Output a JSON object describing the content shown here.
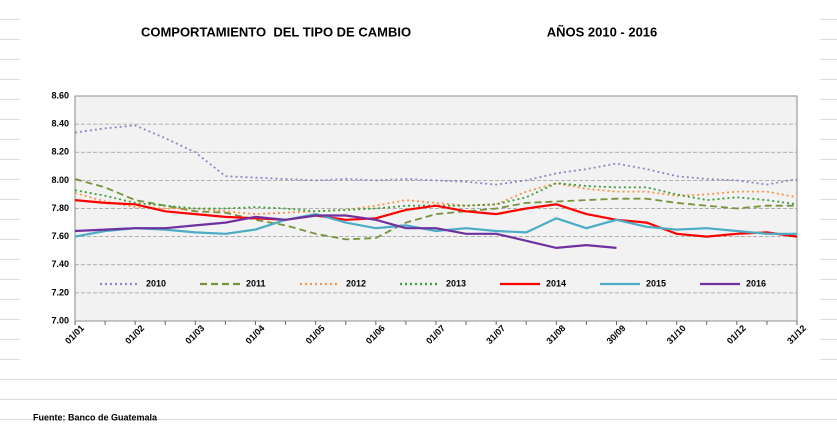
{
  "chart_data": {
    "type": "line",
    "title": "COMPORTAMIENTO  DEL TIPO DE CAMBIO",
    "subtitle": "AÑOS 2010 - 2016",
    "source": "Fuente: Banco de Guatemala",
    "categories": [
      "01/01",
      null,
      "01/02",
      null,
      "01/03",
      null,
      "01/04",
      null,
      "01/05",
      null,
      "01/06",
      null,
      "01/07",
      null,
      "31/07",
      null,
      "31/08",
      null,
      "30/09",
      null,
      "31/10",
      null,
      "01/12",
      null,
      "31/12"
    ],
    "ylim": [
      7,
      8.6
    ],
    "yticks": [
      {
        "value": 7,
        "label": "7.00"
      },
      {
        "value": 7.2,
        "label": "7.20"
      },
      {
        "value": 7.4,
        "label": "7.40"
      },
      {
        "value": 7.6,
        "label": "7.60"
      },
      {
        "value": 7.8,
        "label": "7.80"
      },
      {
        "value": 8,
        "label": "8.00"
      },
      {
        "value": 8.2,
        "label": "8.20"
      },
      {
        "value": 8.4,
        "label": "8.40"
      },
      {
        "value": 8.6,
        "label": "8.60"
      }
    ],
    "grid": true,
    "series": [
      {
        "name": "2010",
        "color": "#8f86c4",
        "dash": "dotted",
        "values": [
          8.34,
          8.37,
          8.39,
          8.3,
          8.2,
          8.03,
          8.02,
          8.01,
          8.0,
          8.01,
          8.0,
          8.01,
          8.0,
          7.99,
          7.97,
          8.0,
          8.05,
          8.08,
          8.12,
          8.08,
          8.03,
          8.01,
          8.0,
          7.97,
          8.01
        ]
      },
      {
        "name": "2011",
        "color": "#77933c",
        "dash": "dashed",
        "values": [
          8.01,
          7.95,
          7.86,
          7.82,
          7.78,
          7.77,
          7.72,
          7.68,
          7.62,
          7.58,
          7.59,
          7.7,
          7.76,
          7.78,
          7.8,
          7.84,
          7.85,
          7.86,
          7.87,
          7.87,
          7.84,
          7.82,
          7.8,
          7.82,
          7.82
        ]
      },
      {
        "name": "2012",
        "color": "#f79646",
        "dash": "dotted",
        "values": [
          7.91,
          7.85,
          7.81,
          7.8,
          7.8,
          7.78,
          7.76,
          7.77,
          7.78,
          7.79,
          7.82,
          7.86,
          7.84,
          7.82,
          7.83,
          7.92,
          7.98,
          7.94,
          7.92,
          7.92,
          7.89,
          7.9,
          7.92,
          7.92,
          7.88
        ]
      },
      {
        "name": "2013",
        "color": "#3a9e3a",
        "dash": "dotted",
        "values": [
          7.93,
          7.89,
          7.84,
          7.82,
          7.8,
          7.8,
          7.81,
          7.8,
          7.78,
          7.79,
          7.8,
          7.82,
          7.82,
          7.82,
          7.83,
          7.88,
          7.98,
          7.96,
          7.95,
          7.95,
          7.9,
          7.86,
          7.88,
          7.86,
          7.83
        ]
      },
      {
        "name": "2014",
        "color": "#ff0000",
        "dash": "solid",
        "values": [
          7.86,
          7.84,
          7.83,
          7.78,
          7.76,
          7.74,
          7.73,
          7.72,
          7.75,
          7.72,
          7.73,
          7.79,
          7.82,
          7.78,
          7.76,
          7.8,
          7.83,
          7.76,
          7.72,
          7.7,
          7.62,
          7.6,
          7.62,
          7.63,
          7.6
        ]
      },
      {
        "name": "2015",
        "color": "#4bacc6",
        "dash": "solid",
        "values": [
          7.6,
          7.64,
          7.66,
          7.65,
          7.63,
          7.62,
          7.65,
          7.72,
          7.76,
          7.7,
          7.66,
          7.68,
          7.64,
          7.66,
          7.64,
          7.63,
          7.73,
          7.66,
          7.72,
          7.67,
          7.65,
          7.66,
          7.64,
          7.62,
          7.62
        ]
      },
      {
        "name": "2016",
        "color": "#7030a0",
        "dash": "solid",
        "values": [
          7.64,
          7.65,
          7.66,
          7.66,
          7.68,
          7.7,
          7.74,
          7.72,
          7.75,
          7.75,
          7.72,
          7.66,
          7.66,
          7.62,
          7.62,
          7.57,
          7.52,
          7.54,
          7.52,
          null,
          null,
          null,
          null,
          null,
          null
        ]
      }
    ]
  }
}
